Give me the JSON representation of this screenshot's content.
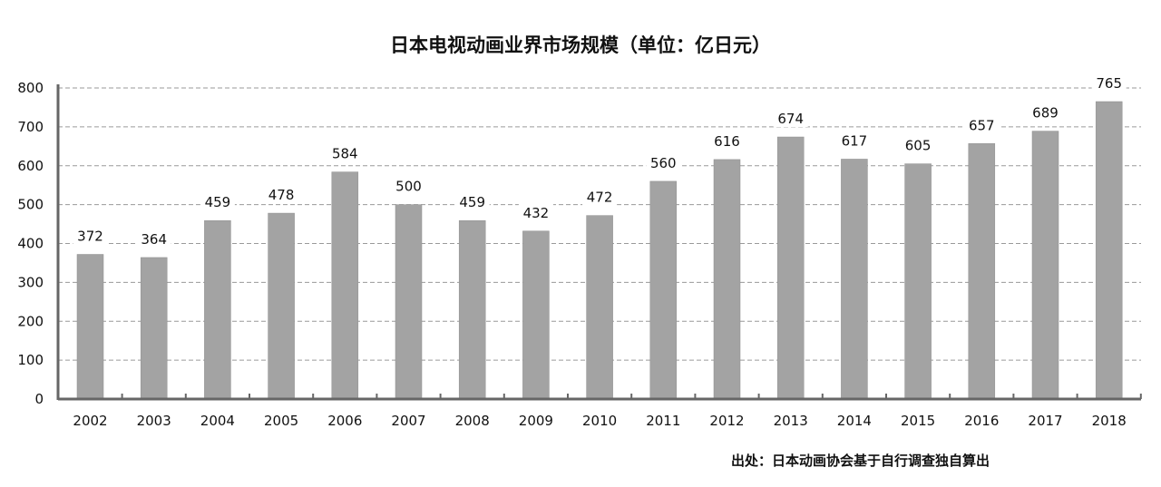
{
  "chart_data": {
    "type": "bar",
    "title": "日本电视动画业界市场规模（单位：亿日元）",
    "xlabel": "",
    "ylabel": "",
    "categories": [
      "2002",
      "2003",
      "2004",
      "2005",
      "2006",
      "2007",
      "2008",
      "2009",
      "2010",
      "2011",
      "2012",
      "2013",
      "2014",
      "2015",
      "2016",
      "2017",
      "2018"
    ],
    "values": [
      372,
      364,
      459,
      478,
      584,
      500,
      459,
      432,
      472,
      560,
      616,
      674,
      617,
      605,
      657,
      689,
      765
    ],
    "ylim": [
      0,
      800
    ],
    "yticks": [
      0,
      100,
      200,
      300,
      400,
      500,
      600,
      700,
      800
    ],
    "grid": true,
    "bar_color": "#a3a3a3",
    "legend": "none"
  },
  "source": "出处：日本动画协会基于自行调查独自算出"
}
